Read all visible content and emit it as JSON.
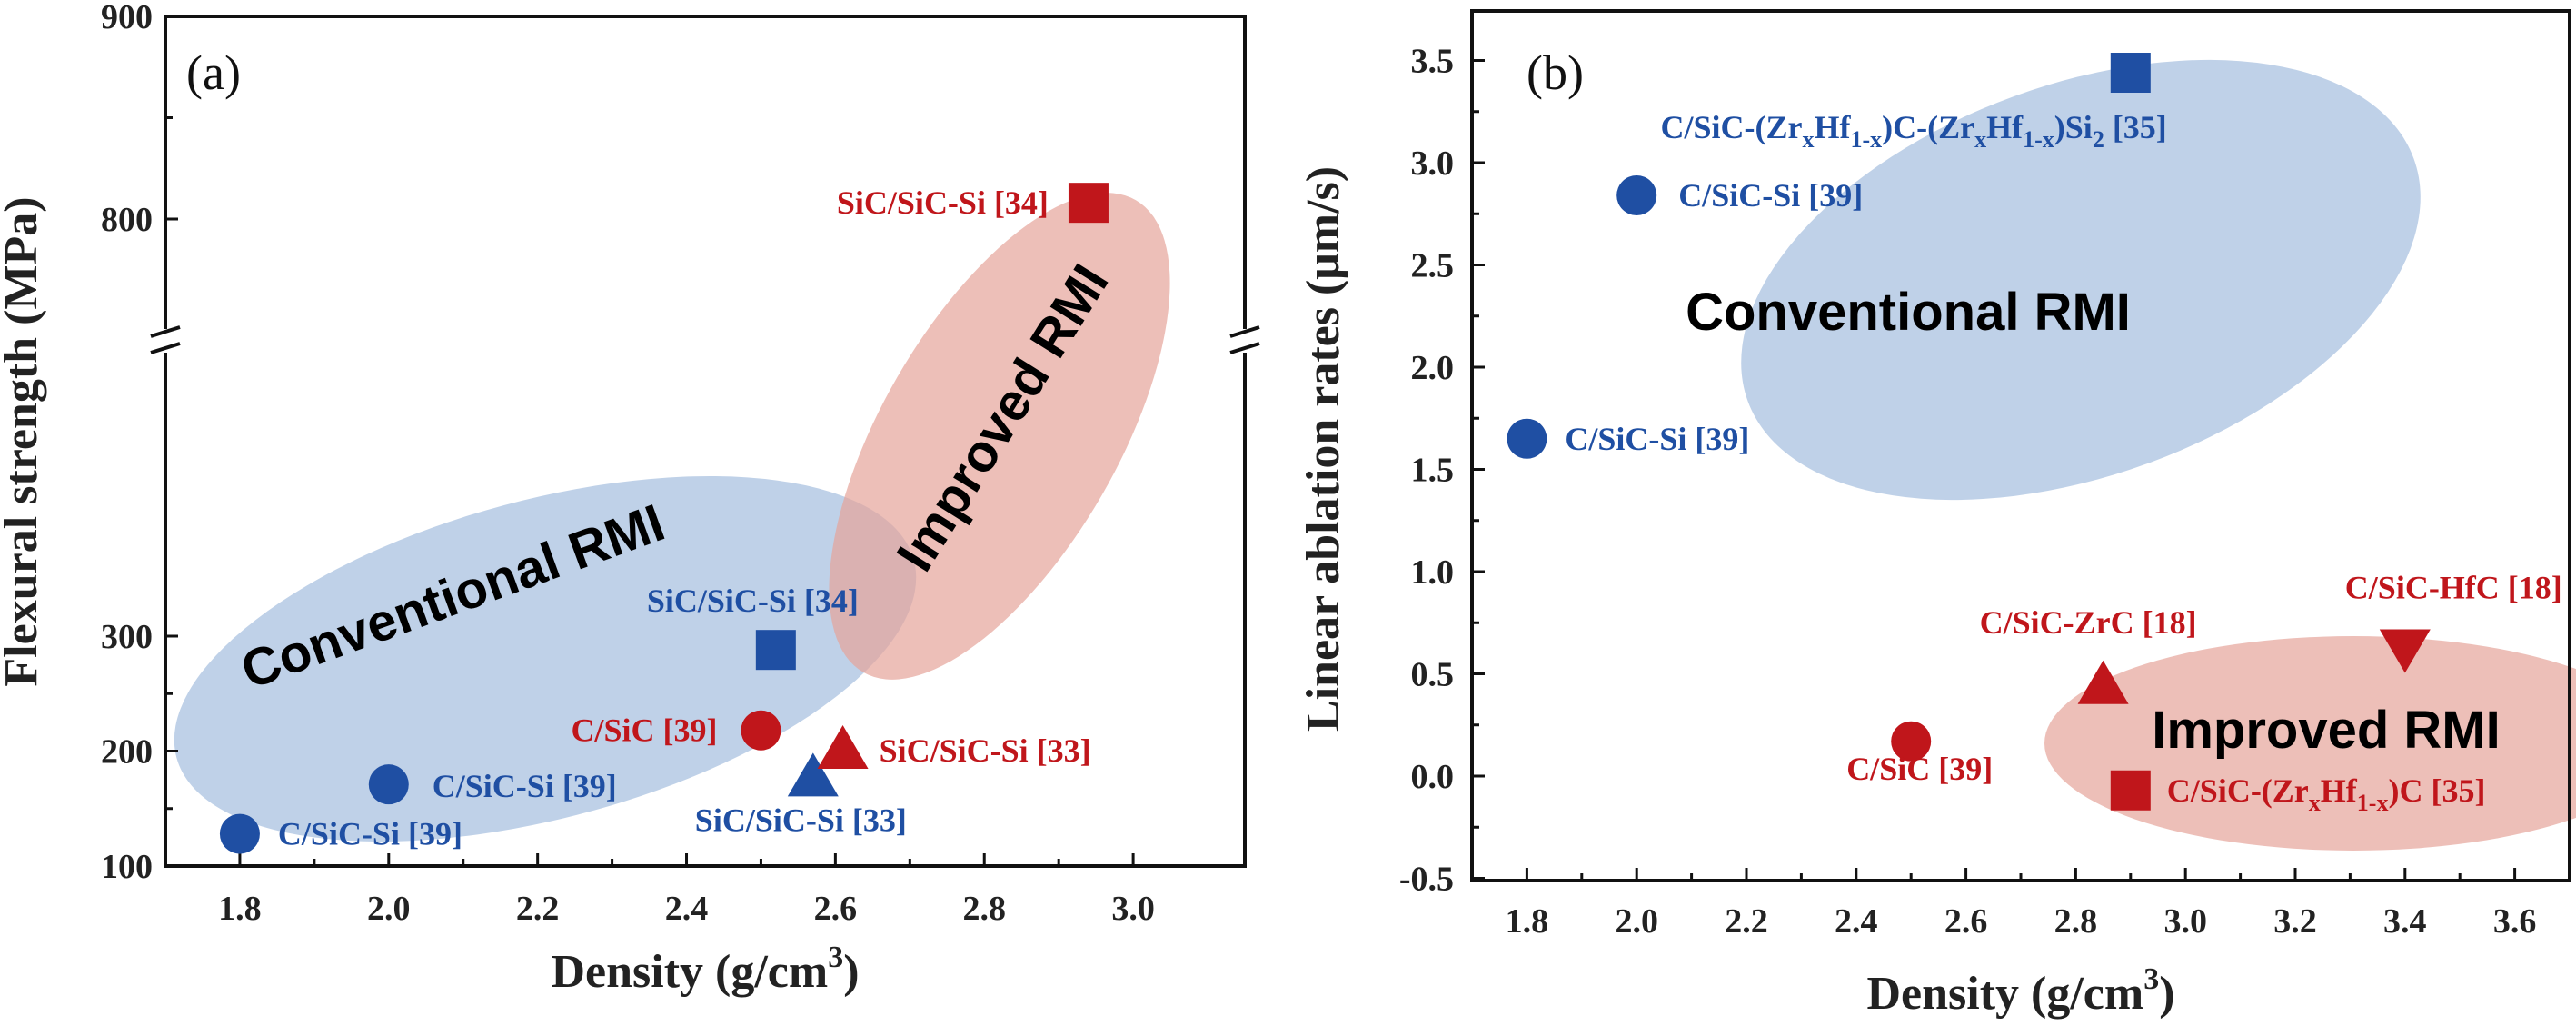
{
  "colors": {
    "blue": "#1f4fa3",
    "red": "#c0161b",
    "blue_region": "#a9c1e0",
    "red_region": "#e6a49a"
  },
  "chart_data": [
    {
      "type": "scatter",
      "panel_label": "(a)",
      "xlabel": "Density (g/cm",
      "xlabel_sup": "3",
      "xlabel_end": ")",
      "ylabel": "Flexural strength (MPa)",
      "xlim": [
        1.7,
        3.15
      ],
      "ylim": [
        100,
        900
      ],
      "y_axis_break": [
        300,
        800
      ],
      "x_ticks": [
        "1.8",
        "2.0",
        "2.2",
        "2.4",
        "2.6",
        "2.8",
        "3.0"
      ],
      "y_ticks": [
        "100",
        "200",
        "300",
        "800",
        "900"
      ],
      "regions": [
        {
          "name": "Conventional RMI",
          "color": "blue"
        },
        {
          "name": "Improved RMI",
          "color": "red"
        }
      ],
      "points": [
        {
          "x": 1.8,
          "y": 128,
          "marker": "circle",
          "color": "blue",
          "label": "C/SiC-Si [39]"
        },
        {
          "x": 2.0,
          "y": 171,
          "marker": "circle",
          "color": "blue",
          "label": "C/SiC-Si [39]"
        },
        {
          "x": 2.52,
          "y": 288,
          "marker": "square",
          "color": "blue",
          "label": "SiC/SiC-Si  [34]"
        },
        {
          "x": 2.57,
          "y": 178,
          "marker": "triangle-up",
          "color": "blue",
          "label": "SiC/SiC-Si  [33]"
        },
        {
          "x": 2.5,
          "y": 218,
          "marker": "circle",
          "color": "red",
          "label": "C/SiC [39]"
        },
        {
          "x": 2.61,
          "y": 202,
          "marker": "triangle-up",
          "color": "red",
          "label": "SiC/SiC-Si [33]"
        },
        {
          "x": 2.94,
          "y": 808,
          "marker": "square",
          "color": "red",
          "label": "SiC/SiC-Si [34]"
        }
      ]
    },
    {
      "type": "scatter",
      "panel_label": "(b)",
      "xlabel": "Density (g/cm",
      "xlabel_sup": "3",
      "xlabel_end": ")",
      "ylabel": "Linear ablation rates (μm/s)",
      "xlim": [
        1.7,
        3.7
      ],
      "ylim": [
        -0.5,
        3.75
      ],
      "x_ticks": [
        "1.8",
        "2.0",
        "2.2",
        "2.4",
        "2.6",
        "2.8",
        "3.0",
        "3.2",
        "3.4",
        "3.6"
      ],
      "y_ticks": [
        "-0.5",
        "0.0",
        "0.5",
        "1.0",
        "1.5",
        "2.0",
        "2.5",
        "3.0",
        "3.5"
      ],
      "regions": [
        {
          "name": "Conventional RMI",
          "color": "blue"
        },
        {
          "name": "Improved RMI",
          "color": "red"
        }
      ],
      "points": [
        {
          "x": 1.8,
          "y": 1.65,
          "marker": "circle",
          "color": "blue",
          "label": "C/SiC-Si [39]"
        },
        {
          "x": 2.0,
          "y": 2.84,
          "marker": "circle",
          "color": "blue",
          "label": "C/SiC-Si [39]"
        },
        {
          "x": 2.9,
          "y": 3.44,
          "marker": "square",
          "color": "blue",
          "label": "C/SiC-(ZrxHf1-x)C-(ZrxHf1-x)Si2  [35]"
        },
        {
          "x": 2.5,
          "y": 0.17,
          "marker": "circle",
          "color": "red",
          "label": "C/SiC [39]"
        },
        {
          "x": 2.85,
          "y": 0.45,
          "marker": "triangle-up",
          "color": "red",
          "label": "C/SiC-ZrC [18]"
        },
        {
          "x": 3.4,
          "y": 0.62,
          "marker": "triangle-down",
          "color": "red",
          "label": "C/SiC-HfC [18]"
        },
        {
          "x": 2.9,
          "y": -0.07,
          "marker": "square",
          "color": "red",
          "label": "C/SiC-(ZrxHf1-x)C [35]"
        }
      ]
    }
  ]
}
